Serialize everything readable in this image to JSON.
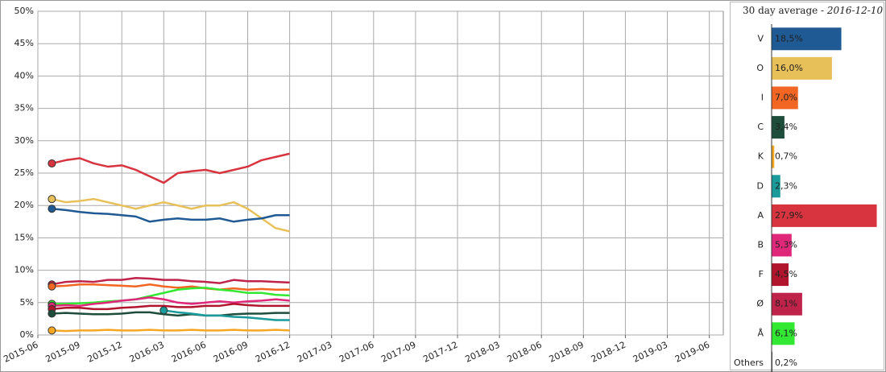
{
  "chart_data": [
    {
      "type": "line",
      "x": [
        "2015-07",
        "2015-08",
        "2015-09",
        "2015-10",
        "2015-11",
        "2015-12",
        "2016-01",
        "2016-02",
        "2016-03",
        "2016-04",
        "2016-05",
        "2016-06",
        "2016-07",
        "2016-08",
        "2016-09",
        "2016-10",
        "2016-11",
        "2016-12"
      ],
      "xlim": [
        "2015-06",
        "2019-07"
      ],
      "xticks": [
        "2015-06",
        "2015-09",
        "2015-12",
        "2016-03",
        "2016-06",
        "2016-09",
        "2016-12",
        "2017-03",
        "2017-06",
        "2017-09",
        "2017-12",
        "2018-03",
        "2018-06",
        "2018-09",
        "2018-12",
        "2019-03",
        "2019-06"
      ],
      "ylim": [
        0,
        50
      ],
      "yticks": [
        {
          "value": 0,
          "label": "0%"
        },
        {
          "value": 5,
          "label": "5%"
        },
        {
          "value": 10,
          "label": "10%"
        },
        {
          "value": 15,
          "label": "15%"
        },
        {
          "value": 20,
          "label": "20%"
        },
        {
          "value": 25,
          "label": "25%"
        },
        {
          "value": 30,
          "label": "30%"
        },
        {
          "value": 35,
          "label": "35%"
        },
        {
          "value": 40,
          "label": "40%"
        },
        {
          "value": 45,
          "label": "45%"
        },
        {
          "value": 50,
          "label": "50%"
        }
      ],
      "grid": true,
      "series": [
        {
          "name": "A",
          "color": "#d7343f",
          "values": [
            26.5,
            27.0,
            27.3,
            26.5,
            26.0,
            26.2,
            25.5,
            24.5,
            23.5,
            25.0,
            25.3,
            25.5,
            25.0,
            25.5,
            26.0,
            27.0,
            27.5,
            28.0
          ]
        },
        {
          "name": "O",
          "color": "#e8c05a",
          "values": [
            21.0,
            20.5,
            20.7,
            21.0,
            20.5,
            20.0,
            19.5,
            20.0,
            20.5,
            20.0,
            19.5,
            20.0,
            20.0,
            20.5,
            19.5,
            18.0,
            16.5,
            16.0
          ]
        },
        {
          "name": "V",
          "color": "#1f5a94",
          "values": [
            19.5,
            19.3,
            19.0,
            18.8,
            18.7,
            18.5,
            18.3,
            17.5,
            17.8,
            18.0,
            17.8,
            17.8,
            18.0,
            17.5,
            17.8,
            18.0,
            18.5,
            18.5
          ]
        },
        {
          "name": "Ø",
          "color": "#c0234a",
          "values": [
            7.8,
            8.2,
            8.3,
            8.2,
            8.5,
            8.5,
            8.8,
            8.7,
            8.5,
            8.5,
            8.3,
            8.2,
            8.0,
            8.5,
            8.3,
            8.3,
            8.2,
            8.1
          ]
        },
        {
          "name": "I",
          "color": "#f26522",
          "values": [
            7.5,
            7.6,
            7.8,
            7.8,
            7.7,
            7.6,
            7.5,
            7.8,
            7.5,
            7.3,
            7.5,
            7.2,
            7.0,
            7.2,
            7.0,
            7.1,
            7.0,
            7.0
          ]
        },
        {
          "name": "Å",
          "color": "#33e833",
          "values": [
            4.8,
            4.8,
            4.9,
            5.0,
            5.2,
            5.3,
            5.5,
            6.0,
            6.5,
            7.0,
            7.2,
            7.3,
            7.0,
            6.8,
            6.5,
            6.5,
            6.2,
            6.1
          ]
        },
        {
          "name": "B",
          "color": "#e0287a",
          "values": [
            4.5,
            4.6,
            4.5,
            4.8,
            5.0,
            5.3,
            5.5,
            5.8,
            5.5,
            5.0,
            4.8,
            5.0,
            5.2,
            5.0,
            5.2,
            5.3,
            5.5,
            5.3
          ]
        },
        {
          "name": "F",
          "color": "#b0152d",
          "values": [
            4.0,
            4.2,
            4.2,
            4.0,
            4.0,
            4.2,
            4.3,
            4.5,
            4.5,
            4.3,
            4.3,
            4.5,
            4.5,
            4.8,
            4.6,
            4.5,
            4.5,
            4.5
          ]
        },
        {
          "name": "C",
          "color": "#1e4d3c",
          "values": [
            3.3,
            3.4,
            3.3,
            3.2,
            3.2,
            3.3,
            3.5,
            3.5,
            3.2,
            3.0,
            3.2,
            3.0,
            3.0,
            3.2,
            3.3,
            3.3,
            3.4,
            3.4
          ]
        },
        {
          "name": "D",
          "color": "#1a9a9a",
          "values": [
            null,
            null,
            null,
            null,
            null,
            null,
            null,
            null,
            3.8,
            3.5,
            3.3,
            3.0,
            3.0,
            2.8,
            2.7,
            2.5,
            2.3,
            2.3
          ]
        },
        {
          "name": "K",
          "color": "#f5a623",
          "values": [
            0.7,
            0.6,
            0.7,
            0.7,
            0.8,
            0.7,
            0.7,
            0.8,
            0.7,
            0.7,
            0.8,
            0.7,
            0.7,
            0.8,
            0.7,
            0.7,
            0.8,
            0.7
          ]
        }
      ]
    },
    {
      "type": "bar",
      "title": "30 day average -",
      "date": "2016-12-10",
      "categories": [
        "V",
        "O",
        "I",
        "C",
        "K",
        "D",
        "A",
        "B",
        "F",
        "Ø",
        "Å",
        "Others"
      ],
      "values": [
        18.5,
        16.0,
        7.0,
        3.4,
        0.7,
        2.3,
        27.9,
        5.3,
        4.5,
        8.1,
        6.1,
        0.2
      ],
      "value_labels": [
        "18,5%",
        "16,0%",
        "7,0%",
        "3,4%",
        "0,7%",
        "2,3%",
        "27,9%",
        "5,3%",
        "4,5%",
        "8,1%",
        "6,1%",
        "0,2%"
      ],
      "colors": [
        "#1f5a94",
        "#e8c05a",
        "#f26522",
        "#1e4d3c",
        "#f5a623",
        "#1a9a9a",
        "#d7343f",
        "#e0287a",
        "#b0152d",
        "#c0234a",
        "#33e833",
        "#333333"
      ],
      "xlim": [
        0,
        28
      ]
    }
  ]
}
